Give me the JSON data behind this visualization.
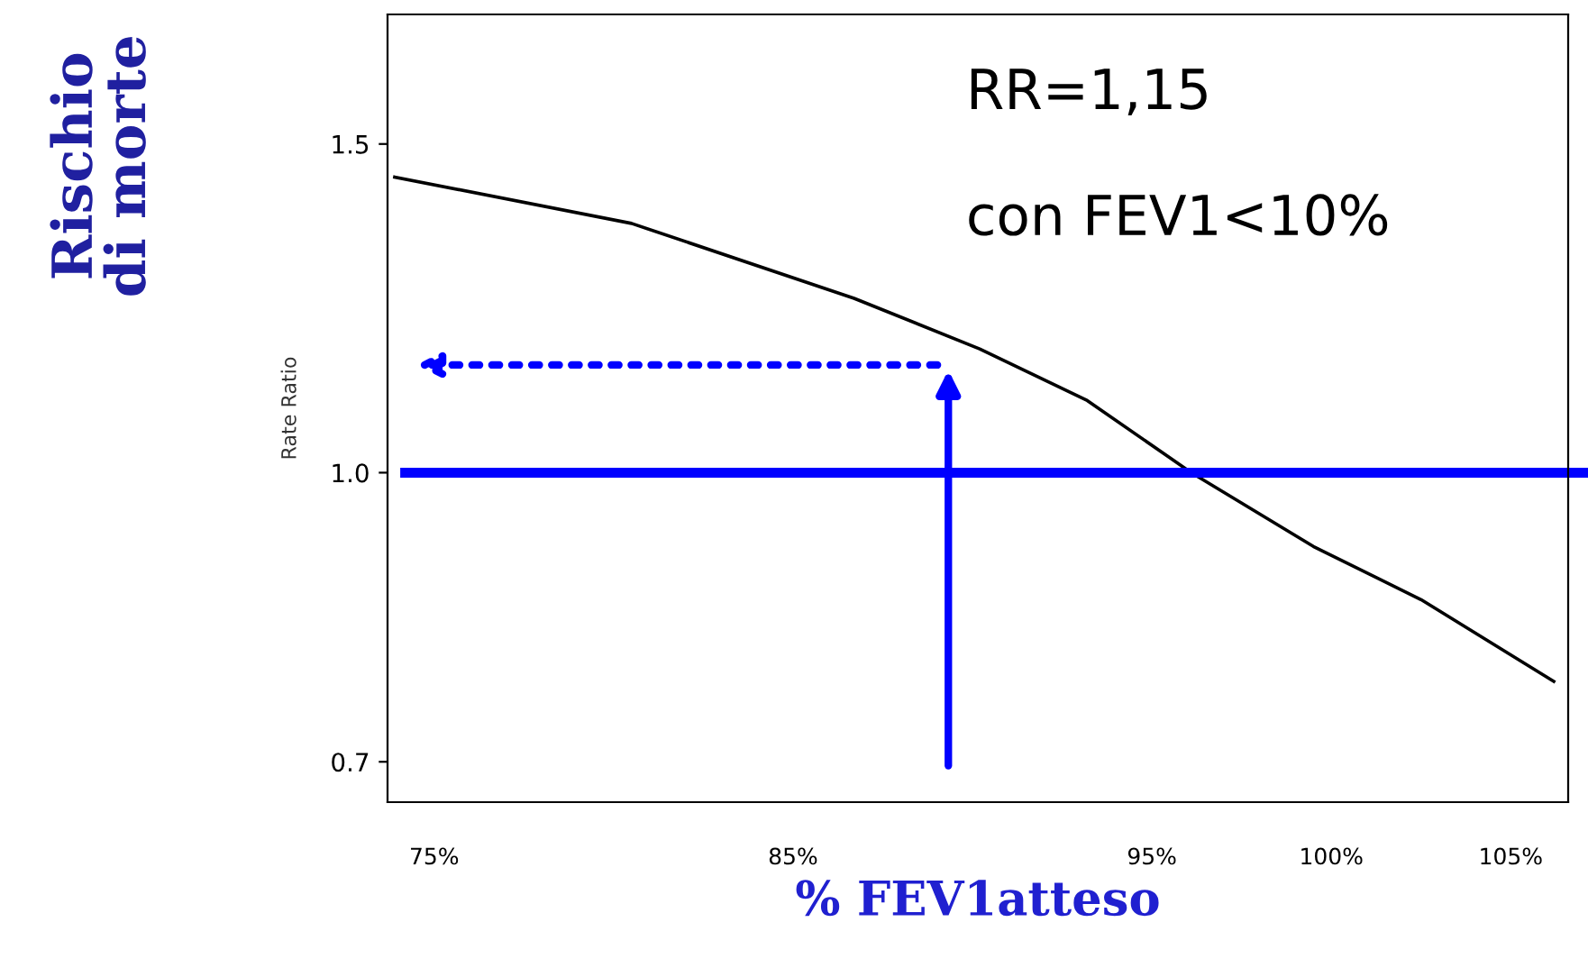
{
  "chart_data": {
    "type": "line",
    "xlabel": "% FEV1atteso",
    "ylabel": "Rate Ratio",
    "log": "y",
    "x": [
      73.9,
      80.5,
      86.7,
      90.2,
      93.2,
      96.1,
      99.5,
      102.5,
      106.2
    ],
    "series": [
      {
        "color": "#000000",
        "values": [
          1.44,
          1.36,
          1.24,
          1.165,
          1.093,
          1.0,
          0.913,
          0.855,
          0.773
        ]
      }
    ],
    "xlim": [
      73.7,
      106.6
    ],
    "ylim": [
      0.666,
      1.76
    ],
    "xticks": [
      {
        "value": 75,
        "label": "75%"
      },
      {
        "value": 85,
        "label": "85%"
      },
      {
        "value": 95,
        "label": "95%"
      },
      {
        "value": 100,
        "label": "100%"
      },
      {
        "value": 105,
        "label": "105%"
      }
    ],
    "yticks": [
      {
        "value": 0.7,
        "label": "0.7"
      },
      {
        "value": 1.0,
        "label": "1.0"
      },
      {
        "value": 1.5,
        "label": "1.5"
      }
    ],
    "ref_lines": [
      {
        "axis": "y",
        "value": 1.0,
        "color": "#0000ff",
        "line_style": "solid"
      }
    ],
    "annotations": [
      "RR=1,15",
      "con FEV1<10%",
      "Rischio\ndi morte"
    ],
    "grid": false,
    "legend": false,
    "marker": "none",
    "line_style": "solid"
  }
}
